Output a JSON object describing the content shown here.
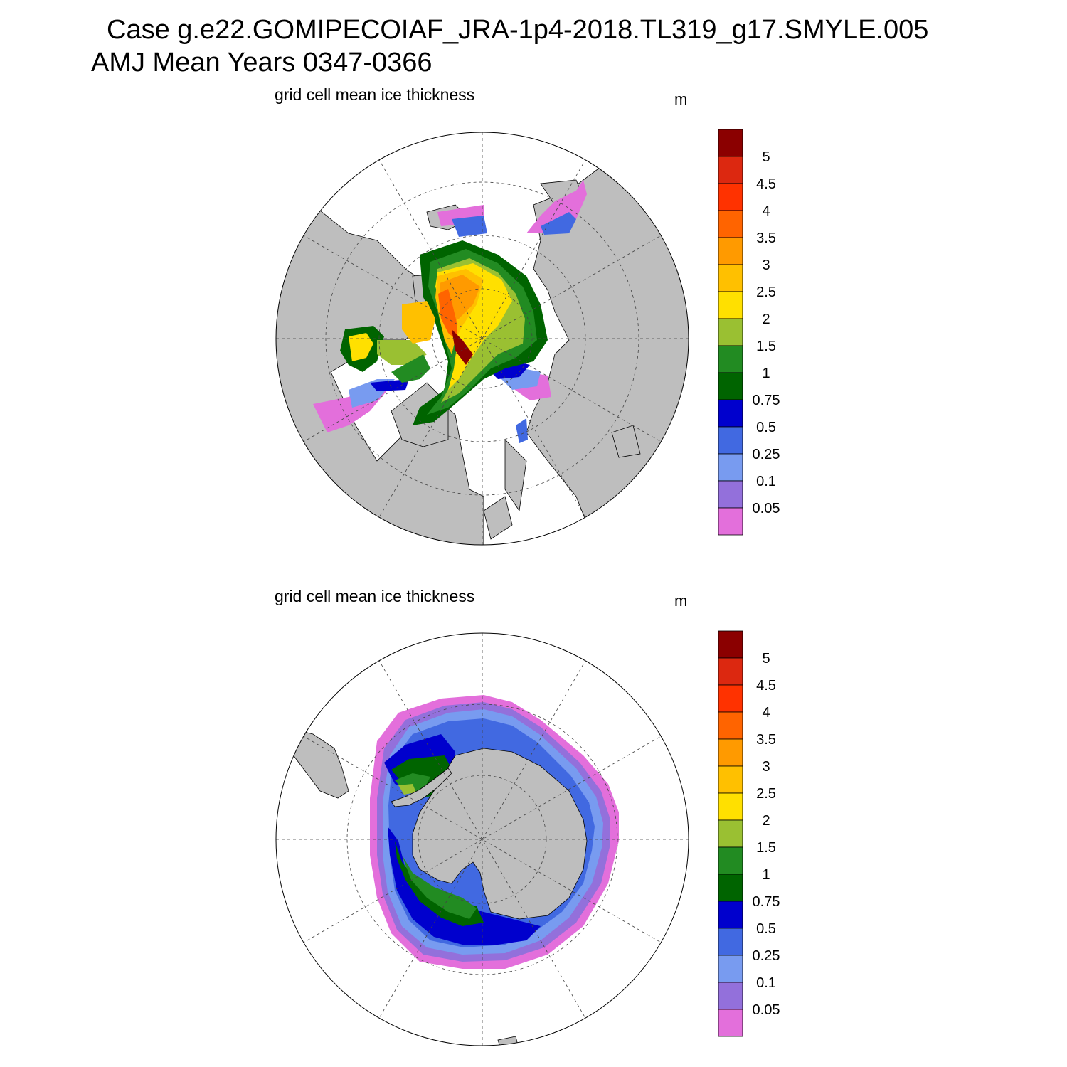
{
  "header": {
    "case_line": "Case g.e22.GOMIPECOIAF_JRA-1p4-2018.TL319_g17.SMYLE.005",
    "season_line": "AMJ Mean   Years 0347-0366"
  },
  "panels": [
    {
      "id": "arctic",
      "title": "grid cell mean ice thickness",
      "unit": "m",
      "hemisphere": "north"
    },
    {
      "id": "antarctic",
      "title": "grid cell mean ice thickness",
      "unit": "m",
      "hemisphere": "south"
    }
  ],
  "colorbar": {
    "levels": [
      "0.05",
      "0.1",
      "0.25",
      "0.5",
      "0.75",
      "1",
      "1.5",
      "2",
      "2.5",
      "3",
      "3.5",
      "4",
      "4.5",
      "5"
    ],
    "colors": [
      "#e36fdb",
      "#9370db",
      "#789bf0",
      "#4169e1",
      "#0000cd",
      "#006400",
      "#228b22",
      "#9ac032",
      "#ffe000",
      "#ffc000",
      "#ff9a00",
      "#ff6400",
      "#ff3200",
      "#dc2810",
      "#8b0000"
    ]
  },
  "map_style": {
    "land": "#bebebe",
    "ocean": "#ffffff",
    "grid": "dashed"
  }
}
